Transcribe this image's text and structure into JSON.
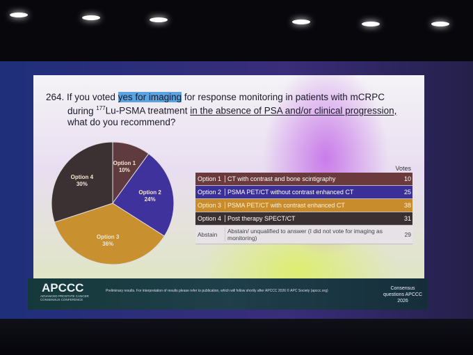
{
  "chart_data": {
    "type": "pie",
    "categories": [
      "Option 1",
      "Option 2",
      "Option 3",
      "Option 4"
    ],
    "values": [
      10,
      24,
      36,
      30
    ],
    "value_labels": [
      "10%",
      "24%",
      "36%",
      "30%"
    ],
    "colors": [
      "#5f3b40",
      "#40329c",
      "#c8902e",
      "#3b3132"
    ]
  },
  "question": {
    "number": "264.",
    "part1": "If you voted ",
    "highlight": "yes for imaging",
    "part2": " for response monitoring in patients with mCRPC",
    "part3": "during ",
    "superscript": "177",
    "part4": "Lu-PSMA treatment ",
    "underlined": "in the absence of PSA and/or clinical progression,",
    "part5": "what do you recommend?"
  },
  "table": {
    "header": "Votes",
    "rows": [
      [
        "Option 1",
        "CT with contrast and bone scintigraphy",
        10
      ],
      [
        "Option 2",
        "PSMA PET/CT without contrast enhanced CT",
        25
      ],
      [
        "Option 3",
        "PSMA PET/CT with contrast enhanced CT",
        38
      ],
      [
        "Option 4",
        "Post therapy SPECT/CT",
        31
      ],
      [
        "Abstain",
        "Abstain/ unqualified to answer (I did not vote for imaging as monitoring)",
        29
      ]
    ]
  },
  "footer": {
    "logo": "APCCC",
    "logo_subtitle": "ADVANCED PROSTATE CANCER CONSENSUS CONFERENCE",
    "note": "Preliminary results. For interpretation of results please refer to publication, which will follow shortly after APCCC 2026 © APC Society (apccc.org)",
    "right": "Consensus questions APCCC 2026"
  }
}
